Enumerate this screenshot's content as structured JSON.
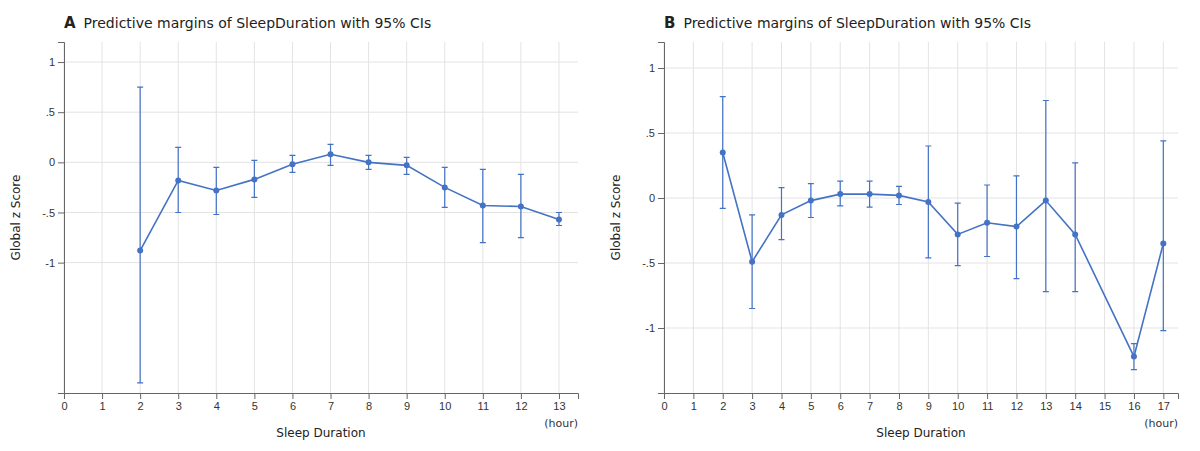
{
  "chart_data": [
    {
      "type": "line",
      "panel_label": "A",
      "title": "Predictive margins of SleepDuration with 95% CIs",
      "x_label": "Sleep Duration",
      "y_label": "Global z Score",
      "annotations": [
        "(hour)"
      ],
      "x": [
        2,
        3,
        4,
        5,
        6,
        7,
        8,
        9,
        10,
        11,
        12,
        13
      ],
      "values": [
        -0.88,
        -0.18,
        -0.28,
        -0.17,
        -0.02,
        0.08,
        0.0,
        -0.03,
        -0.25,
        -0.43,
        -0.44,
        -0.57
      ],
      "lower": [
        -2.2,
        -0.5,
        -0.52,
        -0.35,
        -0.1,
        -0.03,
        -0.07,
        -0.12,
        -0.45,
        -0.8,
        -0.75,
        -0.63
      ],
      "upper": [
        0.75,
        0.15,
        -0.05,
        0.02,
        0.07,
        0.18,
        0.07,
        0.05,
        -0.05,
        -0.07,
        -0.12,
        -0.5
      ],
      "color": "#4472C4",
      "marker": "circle",
      "xlim": [
        0,
        13.5
      ],
      "xticks": [
        0,
        1,
        2,
        3,
        4,
        5,
        6,
        7,
        8,
        9,
        10,
        11,
        12,
        13
      ],
      "ylim": [
        -2.3,
        1.2
      ],
      "yticks": [
        -1,
        {
          "value": -0.5,
          "label": "-.5"
        },
        0,
        {
          "value": 0.5,
          "label": ".5"
        },
        1
      ],
      "grid": true
    },
    {
      "type": "line",
      "panel_label": "B",
      "title": "Predictive margins of SleepDuration with 95% CIs",
      "x_label": "Sleep Duration",
      "y_label": "Global z Score",
      "annotations": [
        "(hour)"
      ],
      "x": [
        2,
        3,
        4,
        5,
        6,
        7,
        8,
        9,
        10,
        11,
        12,
        13,
        14,
        16,
        17
      ],
      "values": [
        0.35,
        -0.49,
        -0.13,
        -0.02,
        0.03,
        0.03,
        0.02,
        -0.03,
        -0.28,
        -0.19,
        -0.22,
        -0.02,
        -0.28,
        -1.22,
        -0.35
      ],
      "lower": [
        -0.08,
        -0.85,
        -0.32,
        -0.15,
        -0.06,
        -0.07,
        -0.05,
        -0.46,
        -0.52,
        -0.45,
        -0.62,
        -0.72,
        -0.72,
        -1.32,
        -1.02
      ],
      "upper": [
        0.78,
        -0.13,
        0.08,
        0.11,
        0.13,
        0.13,
        0.09,
        0.4,
        -0.04,
        0.1,
        0.17,
        0.75,
        0.27,
        -1.12,
        0.44
      ],
      "color": "#4472C4",
      "marker": "circle",
      "xlim": [
        0,
        17.5
      ],
      "xticks": [
        0,
        1,
        2,
        3,
        4,
        5,
        6,
        7,
        8,
        9,
        10,
        11,
        12,
        13,
        14,
        15,
        16,
        17
      ],
      "ylim": [
        -1.5,
        1.2
      ],
      "yticks": [
        -1,
        {
          "value": -0.5,
          "label": "-.5"
        },
        0,
        {
          "value": 0.5,
          "label": ".5"
        },
        1
      ],
      "grid": true
    }
  ]
}
